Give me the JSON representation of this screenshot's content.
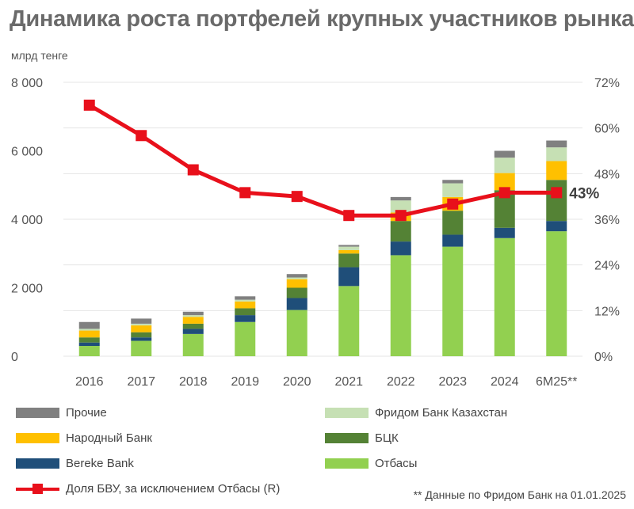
{
  "chart_data": {
    "type": "bar",
    "title": "Динамика роста портфелей крупных участников рынка",
    "ylabel": "млрд тенге",
    "ylim": [
      0,
      8000
    ],
    "y_ticks": [
      "0",
      "2 000",
      "4 000",
      "6 000",
      "8 000"
    ],
    "y2lim": [
      0,
      72
    ],
    "y2_ticks": [
      "0%",
      "12%",
      "24%",
      "36%",
      "48%",
      "60%",
      "72%"
    ],
    "categories": [
      "2016",
      "2017",
      "2018",
      "2019",
      "2020",
      "2021",
      "2022",
      "2023",
      "2024",
      "6M25**"
    ],
    "series": [
      {
        "name": "Отбасы",
        "color": "#92d050",
        "values": [
          300,
          450,
          650,
          1000,
          1350,
          2050,
          2950,
          3200,
          3450,
          3650
        ]
      },
      {
        "name": "Bereke Bank",
        "color": "#1f4e79",
        "values": [
          100,
          100,
          150,
          200,
          350,
          550,
          400,
          350,
          300,
          300
        ]
      },
      {
        "name": "БЦК",
        "color": "#548235",
        "values": [
          150,
          150,
          150,
          200,
          300,
          400,
          600,
          700,
          1100,
          1200
        ]
      },
      {
        "name": "Народный Банк",
        "color": "#ffc000",
        "values": [
          200,
          200,
          200,
          200,
          250,
          100,
          250,
          400,
          500,
          550
        ]
      },
      {
        "name": "Фридом Банк Казахстан",
        "color": "#c6e0b4",
        "values": [
          50,
          50,
          50,
          50,
          50,
          100,
          350,
          400,
          450,
          400
        ]
      },
      {
        "name": "Прочие",
        "color": "#808080",
        "values": [
          200,
          150,
          100,
          100,
          100,
          50,
          100,
          100,
          200,
          200
        ]
      }
    ],
    "line": {
      "name": "Доля  БВУ, за исключением Отбасы (R)",
      "color": "#e8101b",
      "values": [
        66,
        58,
        49,
        43,
        42,
        37,
        37,
        40,
        43,
        43
      ],
      "end_label": "43%"
    },
    "legend_position": "bottom",
    "grid": true
  },
  "legend_order": [
    "Прочие",
    "Фридом Банк Казахстан",
    "Народный Банк",
    "БЦК",
    "Bereke Bank",
    "Отбасы"
  ],
  "note": "** Данные по Фридом Банк на 01.01.2025"
}
